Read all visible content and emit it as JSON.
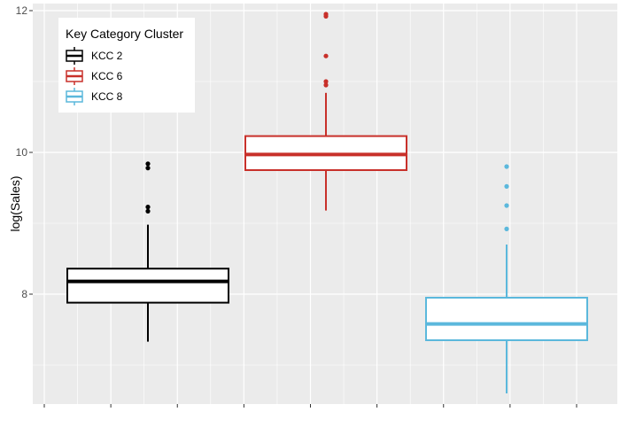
{
  "chart_data": {
    "type": "boxplot",
    "title": "",
    "xlabel": "",
    "ylabel": "log(Sales)",
    "ylim": [
      6.45,
      12.1
    ],
    "yticks": [
      8,
      10,
      12
    ],
    "grid": true,
    "legend": {
      "title": "Key Category Cluster",
      "placement": "top-left"
    },
    "series": [
      {
        "name": "KCC 2",
        "color": "#000000",
        "whisker_low": 7.33,
        "q1": 7.88,
        "median": 8.18,
        "q3": 8.36,
        "whisker_high": 8.98,
        "outliers": [
          9.17,
          9.23,
          9.78,
          9.84
        ]
      },
      {
        "name": "KCC 6",
        "color": "#c8302a",
        "whisker_low": 9.18,
        "q1": 9.75,
        "median": 9.97,
        "q3": 10.23,
        "whisker_high": 10.84,
        "outliers": [
          10.95,
          11.0,
          11.36,
          11.92,
          11.95
        ]
      },
      {
        "name": "KCC 8",
        "color": "#5bb8dc",
        "whisker_low": 6.6,
        "q1": 7.35,
        "median": 7.58,
        "q3": 7.95,
        "whisker_high": 8.7,
        "outliers": [
          8.92,
          9.25,
          9.52,
          9.8
        ]
      }
    ]
  }
}
